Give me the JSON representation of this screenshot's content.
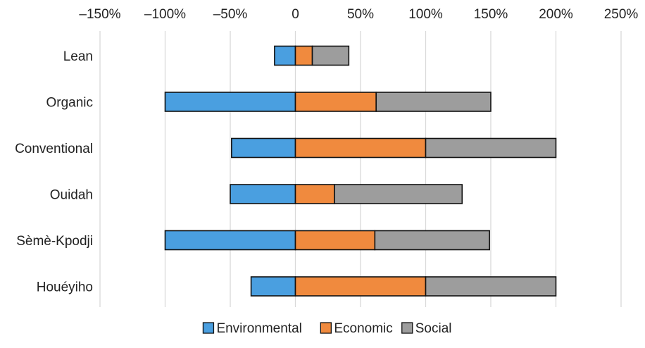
{
  "chart_data": {
    "type": "bar",
    "orientation": "horizontal",
    "stacked": true,
    "title": "",
    "xlabel": "",
    "ylabel": "",
    "xlim": [
      -150,
      250
    ],
    "x_ticks": [
      -150,
      -100,
      -50,
      0,
      50,
      100,
      150,
      200,
      250
    ],
    "x_tick_labels": [
      "–150%",
      "–100%",
      "–50%",
      "0",
      "50%",
      "100%",
      "150%",
      "200%",
      "250%"
    ],
    "x_axis_position": "top",
    "grid": "vertical",
    "legend": "bottom",
    "categories": [
      "Lean",
      "Organic",
      "Conventional",
      "Ouidah",
      "Sèmè-Kpodji",
      "Houéyiho"
    ],
    "series": [
      {
        "name": "Environmental",
        "color": "#4a9fe0",
        "values": [
          -16,
          -100,
          -49,
          -50,
          -100,
          -34
        ]
      },
      {
        "name": "Economic",
        "color": "#f08a3e",
        "values": [
          13,
          62,
          100,
          30,
          61,
          100
        ]
      },
      {
        "name": "Social",
        "color": "#9d9d9d",
        "values": [
          28,
          88,
          100,
          98,
          88,
          100
        ]
      }
    ]
  }
}
